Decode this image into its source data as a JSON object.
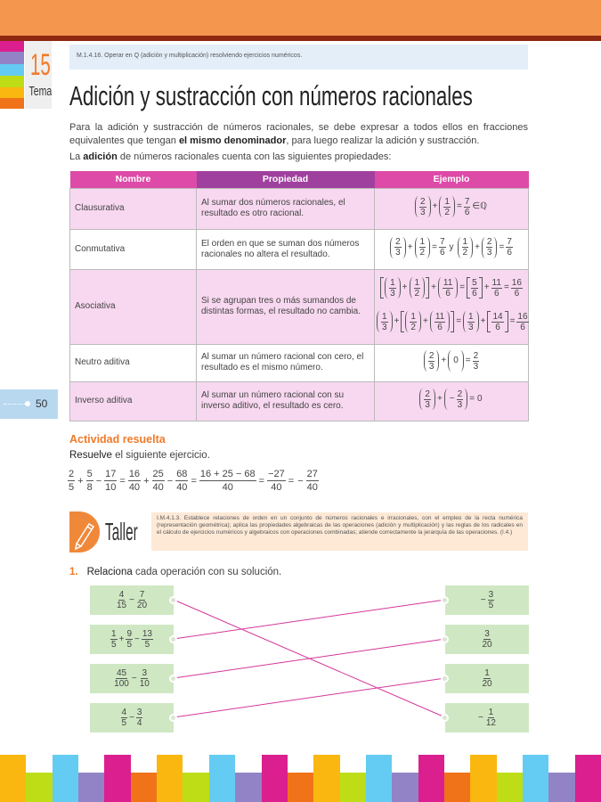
{
  "header": {
    "skill": "M.1.4.16. Operar en Q (adición y multiplicación) resolviendo ejercicios numéricos.",
    "tema_number": "15",
    "tema_label": "Tema",
    "title": "Adición y sustracción con números racionales"
  },
  "intro": {
    "p1_a": "Para la adición y sustracción de números racionales, se debe expresar a todos ellos en fracciones equivalentes que tengan ",
    "p1_bold": "el mismo denominador",
    "p1_b": ", para luego realizar la adición y sustracción.",
    "p2_a": "La ",
    "p2_bold": "adición",
    "p2_b": " de números racionales cuenta con las siguientes propiedades:"
  },
  "table": {
    "headers": [
      "Nombre",
      "Propiedad",
      "Ejemplo"
    ],
    "header_colors": [
      "#DE4AA8",
      "#A0409E",
      "#DE4AA8"
    ],
    "rows": [
      {
        "name": "Clausurativa",
        "property": "Al sumar dos números racionales, el resultado es otro racional.",
        "examples": [
          [
            {
              "p": [
                {
                  "f": [
                    "2",
                    "3"
                  ]
                }
              ]
            },
            "+",
            {
              "p": [
                {
                  "f": [
                    "1",
                    "2"
                  ]
                }
              ]
            },
            "=",
            {
              "f": [
                "7",
                "6"
              ]
            },
            "∈ℚ"
          ]
        ]
      },
      {
        "name": "Conmutativa",
        "property": "El orden en que se suman dos números racionales no altera el resultado.",
        "examples": [
          [
            {
              "p": [
                {
                  "f": [
                    "2",
                    "3"
                  ]
                }
              ]
            },
            "+",
            {
              "p": [
                {
                  "f": [
                    "1",
                    "2"
                  ]
                }
              ]
            },
            "=",
            {
              "f": [
                "7",
                "6"
              ]
            },
            "y",
            {
              "p": [
                {
                  "f": [
                    "1",
                    "2"
                  ]
                }
              ]
            },
            "+",
            {
              "p": [
                {
                  "f": [
                    "2",
                    "3"
                  ]
                }
              ]
            },
            "=",
            {
              "f": [
                "7",
                "6"
              ]
            }
          ]
        ]
      },
      {
        "name": "Asociativa",
        "property": "Si se agrupan tres o más sumandos de distintas formas, el resultado no cambia.",
        "examples": [
          [
            {
              "b": [
                {
                  "p": [
                    {
                      "f": [
                        "1",
                        "3"
                      ]
                    }
                  ]
                },
                "+",
                {
                  "p": [
                    {
                      "f": [
                        "1",
                        "2"
                      ]
                    }
                  ]
                }
              ]
            },
            "+",
            {
              "p": [
                {
                  "f": [
                    "11",
                    "6"
                  ]
                }
              ]
            },
            "=",
            {
              "b": [
                {
                  "f": [
                    "5",
                    "6"
                  ]
                }
              ]
            },
            "+",
            {
              "f": [
                "11",
                "6"
              ]
            },
            "=",
            {
              "f": [
                "16",
                "6"
              ]
            }
          ],
          [
            {
              "p": [
                {
                  "f": [
                    "1",
                    "3"
                  ]
                }
              ]
            },
            "+",
            {
              "b": [
                {
                  "p": [
                    {
                      "f": [
                        "1",
                        "2"
                      ]
                    }
                  ]
                },
                "+",
                {
                  "p": [
                    {
                      "f": [
                        "11",
                        "6"
                      ]
                    }
                  ]
                }
              ]
            },
            "=",
            {
              "p": [
                {
                  "f": [
                    "1",
                    "3"
                  ]
                }
              ]
            },
            "+",
            {
              "b": [
                {
                  "f": [
                    "14",
                    "6"
                  ]
                }
              ]
            },
            "=",
            {
              "f": [
                "16",
                "6"
              ]
            }
          ]
        ]
      },
      {
        "name": "Neutro aditiva",
        "property": "Al sumar un número racional con cero, el resultado es el mismo número.",
        "examples": [
          [
            {
              "p": [
                {
                  "f": [
                    "2",
                    "3"
                  ]
                }
              ]
            },
            "+",
            {
              "p": [
                "0"
              ]
            },
            "=",
            {
              "f": [
                "2",
                "3"
              ]
            }
          ]
        ]
      },
      {
        "name": "Inverso aditiva",
        "property": "Al sumar un número racional con su inverso aditivo, el resultado es cero.",
        "examples": [
          [
            {
              "p": [
                {
                  "f": [
                    "2",
                    "3"
                  ]
                }
              ]
            },
            "+",
            {
              "p": [
                "−",
                {
                  "f": [
                    "2",
                    "3"
                  ]
                }
              ]
            },
            "=",
            "0"
          ]
        ]
      }
    ]
  },
  "page_number": "50",
  "activity": {
    "title": "Actividad resuelta",
    "instruction_bold": "Resuelve",
    "instruction_rest": " el siguiente ejercicio.",
    "equation": [
      {
        "f": [
          "2",
          "5"
        ]
      },
      "+",
      {
        "f": [
          "5",
          "8"
        ]
      },
      "−",
      {
        "f": [
          "17",
          "10"
        ]
      },
      "=",
      {
        "f": [
          "16",
          "40"
        ]
      },
      "+",
      {
        "f": [
          "25",
          "40"
        ]
      },
      "−",
      {
        "f": [
          "68",
          "40"
        ]
      },
      "=",
      {
        "f": [
          "16 + 25 − 68",
          "40"
        ]
      },
      "=",
      {
        "f": [
          "−27",
          "40"
        ]
      },
      "=",
      "−",
      {
        "f": [
          "27",
          "40"
        ]
      }
    ]
  },
  "taller": {
    "label": "Taller",
    "icon": "pencil-icon",
    "accent": "#F0883A",
    "text": "I.M.4.1.3. Establece relaciones de orden en un conjunto de números racionales e irracionales, con el empleo de la recta numérica (representación geométrica); aplica las propiedades algebraicas de las operaciones (adición y multiplicación) y las reglas de los radicales en el cálculo de ejercicios numéricos y algebraicos con operaciones combinadas; atiende correctamente la jerarquía de las operaciones. (I.4.)"
  },
  "exercise": {
    "number": "1.",
    "instruction_bold": "Relaciona",
    "instruction_rest": " cada operación con su solución.",
    "line_color": "#D4379B",
    "left": [
      [
        {
          "f": [
            "4",
            "15"
          ]
        },
        "−",
        {
          "f": [
            "7",
            "20"
          ]
        }
      ],
      [
        {
          "f": [
            "1",
            "5"
          ]
        },
        "+",
        {
          "f": [
            "9",
            "5"
          ]
        },
        "−",
        {
          "f": [
            "13",
            "5"
          ]
        }
      ],
      [
        {
          "f": [
            "45",
            "100"
          ]
        },
        "−",
        {
          "f": [
            "3",
            "10"
          ]
        }
      ],
      [
        {
          "f": [
            "4",
            "5"
          ]
        },
        "−",
        {
          "f": [
            "3",
            "4"
          ]
        }
      ]
    ],
    "right": [
      [
        "−",
        {
          "f": [
            "3",
            "5"
          ]
        }
      ],
      [
        {
          "f": [
            "3",
            "20"
          ]
        }
      ],
      [
        {
          "f": [
            "1",
            "20"
          ]
        }
      ],
      [
        "−",
        {
          "f": [
            "1",
            "12"
          ]
        }
      ]
    ],
    "matches": [
      3,
      0,
      1,
      2
    ]
  },
  "decor": {
    "side_stripes": [
      "#DB1F8E",
      "#9283C6",
      "#64CCF2",
      "#BEDD16",
      "#FAB70F",
      "#F07319"
    ],
    "bottom_tall": [
      "#FAB70F",
      "#64CCF2",
      "#DB1F8E"
    ],
    "bottom_short": [
      "#BEDD16",
      "#9283C6",
      "#F07319"
    ]
  }
}
